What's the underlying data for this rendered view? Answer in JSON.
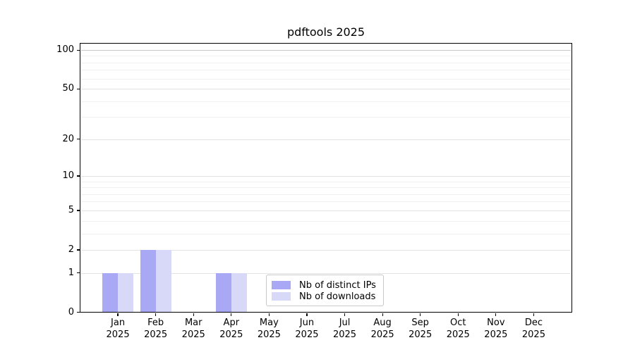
{
  "window": {
    "background": "#ffffff"
  },
  "chart_data": {
    "type": "bar",
    "title": "pdftools 2025",
    "categories": [
      "Jan 2025",
      "Feb 2025",
      "Mar 2025",
      "Apr 2025",
      "May 2025",
      "Jun 2025",
      "Jul 2025",
      "Aug 2025",
      "Sep 2025",
      "Oct 2025",
      "Nov 2025",
      "Dec 2025"
    ],
    "x_tick_line1": [
      "Jan",
      "Feb",
      "Mar",
      "Apr",
      "May",
      "Jun",
      "Jul",
      "Aug",
      "Sep",
      "Oct",
      "Nov",
      "Dec"
    ],
    "x_tick_line2": [
      "2025",
      "2025",
      "2025",
      "2025",
      "2025",
      "2025",
      "2025",
      "2025",
      "2025",
      "2025",
      "2025",
      "2025"
    ],
    "series": [
      {
        "name": "Nb of distinct IPs",
        "color": "#a8a8f5",
        "values": [
          1,
          2,
          0,
          1,
          0,
          0,
          0,
          0,
          0,
          0,
          0,
          0
        ]
      },
      {
        "name": "Nb of downloads",
        "color": "#d8d8f8",
        "values": [
          1,
          2,
          0,
          1,
          0,
          0,
          0,
          0,
          0,
          0,
          0,
          0
        ]
      }
    ],
    "xlabel": "",
    "ylabel": "",
    "y_scale": "log10(1+x)",
    "y_ticks": [
      0,
      1,
      2,
      5,
      10,
      20,
      50,
      100
    ],
    "y_minor_gridlines": [
      3,
      4,
      6,
      7,
      8,
      9,
      30,
      40,
      60,
      70,
      80,
      90
    ],
    "ylim": [
      0,
      113
    ],
    "grid": "horizontal",
    "legend_position": "lower center inside axes",
    "colors": {
      "gridline_minor": "#f0f0f0",
      "gridline_major": "#e3e3e3",
      "gridline_top": "#c8c8c8",
      "spine": "#000000",
      "legend_border": "#c9c9c9",
      "text": "#000000"
    }
  }
}
